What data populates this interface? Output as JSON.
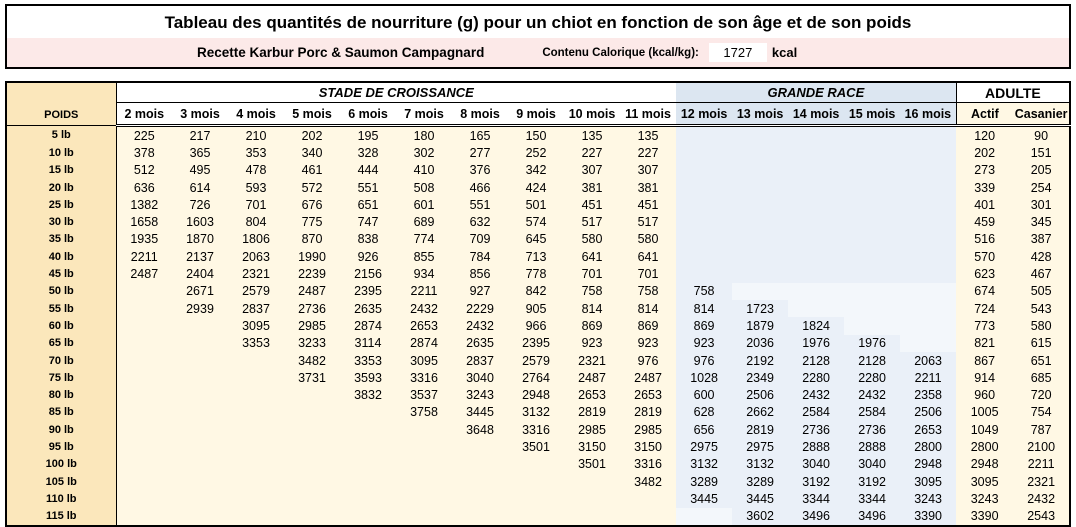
{
  "header": {
    "title": "Tableau des quantités de nourriture (g) pour un chiot en fonction de son âge et de son poids",
    "recipe": "Recette Karbur Porc & Saumon Campagnard",
    "calorie_label": "Contenu Calorique (kcal/kg):",
    "calorie_value": "1727",
    "calorie_unit": "kcal"
  },
  "table": {
    "weight_header": "POIDS",
    "groups": [
      {
        "label": "STADE DE CROISSANCE",
        "span": 10,
        "style": "growth"
      },
      {
        "label": "GRANDE RACE",
        "span": 5,
        "style": "large"
      },
      {
        "label": "ADULTE",
        "span": 2,
        "style": "adult"
      }
    ],
    "columns": [
      "2 mois",
      "3 mois",
      "4 mois",
      "5 mois",
      "6 mois",
      "7 mois",
      "8 mois",
      "9 mois",
      "10 mois",
      "11 mois",
      "12 mois",
      "13 mois",
      "14 mois",
      "15 mois",
      "16 mois",
      "Actif",
      "Casanier"
    ],
    "rows": [
      {
        "weight": "5 lb",
        "values": [
          225,
          217,
          210,
          202,
          195,
          180,
          165,
          150,
          135,
          135,
          null,
          null,
          null,
          null,
          null,
          120,
          90
        ]
      },
      {
        "weight": "10 lb",
        "values": [
          378,
          365,
          353,
          340,
          328,
          302,
          277,
          252,
          227,
          227,
          null,
          null,
          null,
          null,
          null,
          202,
          151
        ]
      },
      {
        "weight": "15 lb",
        "values": [
          512,
          495,
          478,
          461,
          444,
          410,
          376,
          342,
          307,
          307,
          null,
          null,
          null,
          null,
          null,
          273,
          205
        ]
      },
      {
        "weight": "20 lb",
        "values": [
          636,
          614,
          593,
          572,
          551,
          508,
          466,
          424,
          381,
          381,
          null,
          null,
          null,
          null,
          null,
          339,
          254
        ]
      },
      {
        "weight": "25 lb",
        "values": [
          1382,
          726,
          701,
          676,
          651,
          601,
          551,
          501,
          451,
          451,
          null,
          null,
          null,
          null,
          null,
          401,
          301
        ]
      },
      {
        "weight": "30 lb",
        "values": [
          1658,
          1603,
          804,
          775,
          747,
          689,
          632,
          574,
          517,
          517,
          null,
          null,
          null,
          null,
          null,
          459,
          345
        ]
      },
      {
        "weight": "35 lb",
        "values": [
          1935,
          1870,
          1806,
          870,
          838,
          774,
          709,
          645,
          580,
          580,
          null,
          null,
          null,
          null,
          null,
          516,
          387
        ]
      },
      {
        "weight": "40 lb",
        "values": [
          2211,
          2137,
          2063,
          1990,
          926,
          855,
          784,
          713,
          641,
          641,
          null,
          null,
          null,
          null,
          null,
          570,
          428
        ]
      },
      {
        "weight": "45 lb",
        "values": [
          2487,
          2404,
          2321,
          2239,
          2156,
          934,
          856,
          778,
          701,
          701,
          null,
          null,
          null,
          null,
          null,
          623,
          467
        ]
      },
      {
        "weight": "50 lb",
        "values": [
          null,
          2671,
          2579,
          2487,
          2395,
          2211,
          927,
          842,
          758,
          758,
          758,
          null,
          null,
          null,
          null,
          674,
          505
        ]
      },
      {
        "weight": "55 lb",
        "values": [
          null,
          2939,
          2837,
          2736,
          2635,
          2432,
          2229,
          905,
          814,
          814,
          814,
          1723,
          null,
          null,
          null,
          724,
          543
        ]
      },
      {
        "weight": "60 lb",
        "values": [
          null,
          null,
          3095,
          2985,
          2874,
          2653,
          2432,
          966,
          869,
          869,
          869,
          1879,
          1824,
          null,
          null,
          773,
          580
        ]
      },
      {
        "weight": "65 lb",
        "values": [
          null,
          null,
          3353,
          3233,
          3114,
          2874,
          2635,
          2395,
          923,
          923,
          923,
          2036,
          1976,
          1976,
          null,
          821,
          615
        ]
      },
      {
        "weight": "70 lb",
        "values": [
          null,
          null,
          null,
          3482,
          3353,
          3095,
          2837,
          2579,
          2321,
          976,
          976,
          2192,
          2128,
          2128,
          2063,
          867,
          651
        ]
      },
      {
        "weight": "75 lb",
        "values": [
          null,
          null,
          null,
          3731,
          3593,
          3316,
          3040,
          2764,
          2487,
          2487,
          1028,
          2349,
          2280,
          2280,
          2211,
          914,
          685
        ]
      },
      {
        "weight": "80 lb",
        "values": [
          null,
          null,
          null,
          null,
          3832,
          3537,
          3243,
          2948,
          2653,
          2653,
          600,
          2506,
          2432,
          2432,
          2358,
          960,
          720
        ]
      },
      {
        "weight": "85 lb",
        "values": [
          null,
          null,
          null,
          null,
          null,
          3758,
          3445,
          3132,
          2819,
          2819,
          628,
          2662,
          2584,
          2584,
          2506,
          1005,
          754
        ]
      },
      {
        "weight": "90 lb",
        "values": [
          null,
          null,
          null,
          null,
          null,
          null,
          3648,
          3316,
          2985,
          2985,
          656,
          2819,
          2736,
          2736,
          2653,
          1049,
          787
        ]
      },
      {
        "weight": "95 lb",
        "values": [
          null,
          null,
          null,
          null,
          null,
          null,
          null,
          3501,
          3150,
          3150,
          2975,
          2975,
          2888,
          2888,
          2800,
          2800,
          2100
        ]
      },
      {
        "weight": "100 lb",
        "values": [
          null,
          null,
          null,
          null,
          null,
          null,
          null,
          null,
          3501,
          3316,
          3132,
          3132,
          3040,
          3040,
          2948,
          2948,
          2211
        ]
      },
      {
        "weight": "105 lb",
        "values": [
          null,
          null,
          null,
          null,
          null,
          null,
          null,
          null,
          null,
          3482,
          3289,
          3289,
          3192,
          3192,
          3095,
          3095,
          2321
        ]
      },
      {
        "weight": "110 lb",
        "values": [
          null,
          null,
          null,
          null,
          null,
          null,
          null,
          null,
          null,
          null,
          3445,
          3445,
          3344,
          3344,
          3243,
          3243,
          2432
        ]
      },
      {
        "weight": "115 lb",
        "values": [
          null,
          null,
          null,
          null,
          null,
          null,
          null,
          null,
          null,
          null,
          null,
          3602,
          3496,
          3496,
          3390,
          3390,
          2543
        ]
      }
    ]
  },
  "colors": {
    "wheat": "#FBE7BB",
    "cream": "#FFF8E4",
    "blue_data": "#EAF0F8",
    "blue_light": "#F3F7FB",
    "blue_header": "#DCE6F1",
    "pink": "#FCE9E8"
  }
}
